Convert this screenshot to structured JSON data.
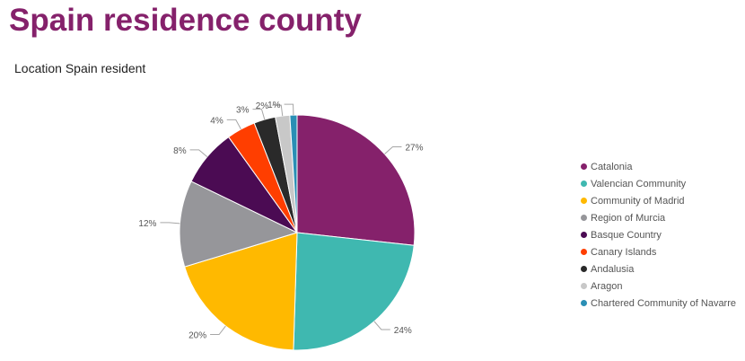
{
  "page_title": "Spain residence county",
  "chart_data": {
    "type": "pie",
    "title": "Location Spain resident",
    "categories": [
      "Catalonia",
      "Valencian Community",
      "Community of Madrid",
      "Region of Murcia",
      "Basque Country",
      "Canary Islands",
      "Andalusia",
      "Aragon",
      "Chartered Community of Navarre"
    ],
    "values": [
      27,
      24,
      20,
      12,
      8,
      4,
      3,
      2,
      1
    ],
    "labels": [
      "27%",
      "24%",
      "20%",
      "12%",
      "8%",
      "4%",
      "3%",
      "2%",
      "1%"
    ],
    "colors": [
      "#85216b",
      "#3fb8b0",
      "#ffb900",
      "#96969a",
      "#4b0b53",
      "#ff3e00",
      "#2a2a2a",
      "#c8c8c8",
      "#2a8fb5"
    ],
    "legend_position": "right"
  }
}
